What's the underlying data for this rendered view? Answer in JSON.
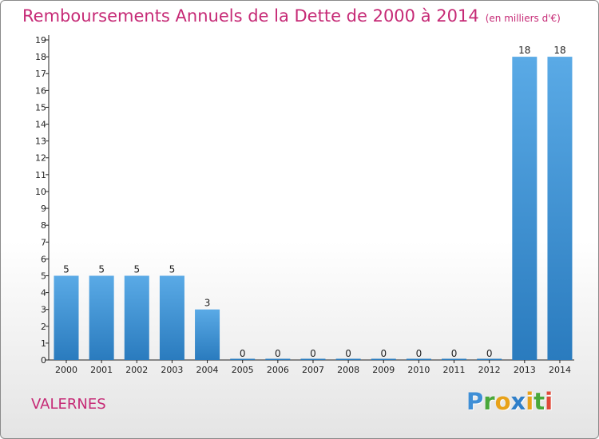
{
  "title": "Remboursements Annuels de la Dette de 2000 à 2014",
  "unit": "(en milliers d'€)",
  "commune": "VALERNES",
  "logo": {
    "text": "Proxiti",
    "letters": [
      {
        "char": "P",
        "color": "#3f8fd6"
      },
      {
        "char": "r",
        "color": "#4aa83a"
      },
      {
        "char": "o",
        "color": "#e8a21a"
      },
      {
        "char": "x",
        "color": "#2f7fc9"
      },
      {
        "char": "i",
        "color": "#e8a21a"
      },
      {
        "char": "t",
        "color": "#4aa83a"
      },
      {
        "char": "i",
        "color": "#e04a3a"
      }
    ]
  },
  "colors": {
    "title": "#c62a76",
    "bar_light": "#5aaae6",
    "bar_dark": "#2a7bbe"
  },
  "chart_data": {
    "type": "bar",
    "categories": [
      "2000",
      "2001",
      "2002",
      "2003",
      "2004",
      "2005",
      "2006",
      "2007",
      "2008",
      "2009",
      "2010",
      "2011",
      "2012",
      "2013",
      "2014"
    ],
    "values": [
      5,
      5,
      5,
      5,
      3,
      0,
      0,
      0,
      0,
      0,
      0,
      0,
      0,
      18,
      18
    ],
    "data_labels": [
      "5",
      "5",
      "5",
      "5",
      "3",
      "0",
      "0",
      "0",
      "0",
      "0",
      "0",
      "0",
      "0",
      "18",
      "18"
    ],
    "yticks": [
      "0",
      "1",
      "2",
      "3",
      "4",
      "5",
      "6",
      "7",
      "8",
      "9",
      "10",
      "11",
      "12",
      "13",
      "14",
      "15",
      "16",
      "17",
      "18",
      "19"
    ],
    "ylim": [
      0,
      19
    ],
    "grid": false,
    "legend": "none"
  }
}
